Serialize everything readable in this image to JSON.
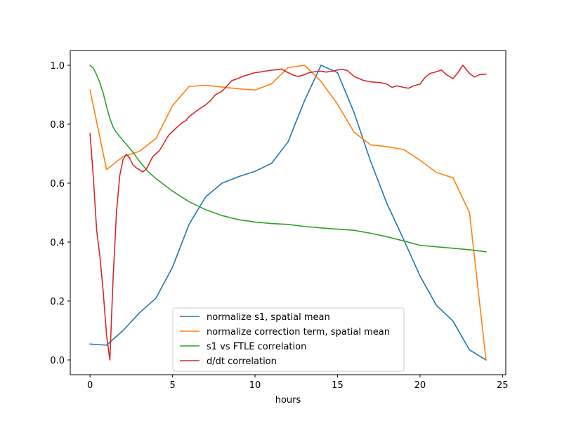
{
  "chart_data": {
    "type": "line",
    "title": "",
    "xlabel": "hours",
    "ylabel": "",
    "xlim": [
      -1.2,
      25.2
    ],
    "ylim": [
      -0.05,
      1.05
    ],
    "xticks": [
      "0",
      "5",
      "10",
      "15",
      "20",
      "25"
    ],
    "yticks": [
      "0.0",
      "0.2",
      "0.4",
      "0.6",
      "0.8",
      "1.0"
    ],
    "grid": false,
    "legend_position": "lower center",
    "series": [
      {
        "name": "normalize s1, spatial mean",
        "color": "#1f77b4",
        "x": [
          0,
          1,
          2,
          3,
          4,
          5,
          6,
          7,
          8,
          9,
          10,
          11,
          12,
          13,
          14,
          15,
          16,
          17,
          18,
          19,
          20,
          21,
          22,
          23,
          24
        ],
        "y": [
          0.054,
          0.05,
          0.1,
          0.16,
          0.21,
          0.315,
          0.46,
          0.553,
          0.6,
          0.622,
          0.64,
          0.667,
          0.74,
          0.88,
          1.0,
          0.975,
          0.84,
          0.675,
          0.53,
          0.41,
          0.285,
          0.185,
          0.132,
          0.034,
          0.0
        ]
      },
      {
        "name": "normalize correction term, spatial mean",
        "color": "#ff7f0e",
        "x": [
          0,
          1,
          2,
          3,
          4,
          5,
          6,
          7,
          8,
          9,
          10,
          11,
          12,
          13,
          14,
          15,
          16,
          17,
          18,
          19,
          20,
          21,
          22,
          23,
          24
        ],
        "y": [
          0.916,
          0.646,
          0.69,
          0.708,
          0.752,
          0.863,
          0.928,
          0.932,
          0.926,
          0.92,
          0.916,
          0.937,
          0.992,
          1.0,
          0.945,
          0.868,
          0.773,
          0.73,
          0.724,
          0.714,
          0.678,
          0.636,
          0.618,
          0.5,
          0.0
        ]
      },
      {
        "name": "s1 vs FTLE correlation",
        "color": "#2ca02c",
        "x": [
          0,
          0.2,
          0.4,
          0.6,
          0.8,
          1,
          1.2,
          1.4,
          1.6,
          1.8,
          2,
          2.5,
          3,
          3.5,
          4,
          5,
          6,
          7,
          8,
          9,
          10,
          11,
          12,
          13,
          14,
          15,
          16,
          17,
          18,
          19,
          20,
          21,
          22,
          23,
          24
        ],
        "y": [
          1.0,
          0.99,
          0.968,
          0.94,
          0.905,
          0.86,
          0.82,
          0.79,
          0.772,
          0.758,
          0.745,
          0.712,
          0.674,
          0.64,
          0.615,
          0.573,
          0.537,
          0.51,
          0.49,
          0.476,
          0.468,
          0.463,
          0.46,
          0.453,
          0.448,
          0.444,
          0.44,
          0.43,
          0.418,
          0.404,
          0.389,
          0.384,
          0.379,
          0.374,
          0.367
        ]
      },
      {
        "name": "d/dt correlation",
        "color": "#d62728",
        "x": [
          0,
          0.2,
          0.4,
          0.6,
          0.8,
          1,
          1.2,
          1.4,
          1.6,
          1.8,
          2,
          2.2,
          2.4,
          2.6,
          2.8,
          3,
          3.2,
          3.4,
          3.6,
          3.8,
          4,
          4.2,
          4.4,
          4.6,
          4.8,
          5,
          5.2,
          5.4,
          5.6,
          5.8,
          6,
          6.3,
          6.6,
          7,
          7.3,
          7.6,
          8,
          8.3,
          8.6,
          9,
          9.3,
          9.6,
          10,
          10.3,
          10.6,
          11,
          11.3,
          11.6,
          12,
          12.3,
          12.6,
          13,
          13.3,
          13.6,
          14,
          14.3,
          14.6,
          15,
          15.3,
          15.6,
          16,
          16.3,
          16.6,
          17,
          17.3,
          17.6,
          18,
          18.3,
          18.6,
          19,
          19.3,
          19.6,
          20,
          20.3,
          20.6,
          21,
          21.3,
          21.6,
          22,
          22.3,
          22.6,
          23,
          23.3,
          23.6,
          24
        ],
        "y": [
          0.768,
          0.62,
          0.44,
          0.35,
          0.23,
          0.085,
          0.0,
          0.28,
          0.5,
          0.625,
          0.68,
          0.698,
          0.685,
          0.662,
          0.652,
          0.645,
          0.638,
          0.647,
          0.668,
          0.69,
          0.7,
          0.71,
          0.728,
          0.748,
          0.765,
          0.775,
          0.786,
          0.796,
          0.806,
          0.812,
          0.826,
          0.838,
          0.851,
          0.865,
          0.88,
          0.9,
          0.912,
          0.93,
          0.948,
          0.956,
          0.963,
          0.968,
          0.975,
          0.977,
          0.98,
          0.983,
          0.985,
          0.987,
          0.975,
          0.967,
          0.962,
          0.968,
          0.975,
          0.978,
          0.98,
          0.977,
          0.979,
          0.984,
          0.986,
          0.982,
          0.962,
          0.955,
          0.948,
          0.944,
          0.942,
          0.941,
          0.936,
          0.925,
          0.93,
          0.925,
          0.922,
          0.93,
          0.936,
          0.958,
          0.972,
          0.978,
          0.984,
          0.968,
          0.955,
          0.975,
          1.0,
          0.972,
          0.96,
          0.968,
          0.97
        ]
      }
    ]
  }
}
